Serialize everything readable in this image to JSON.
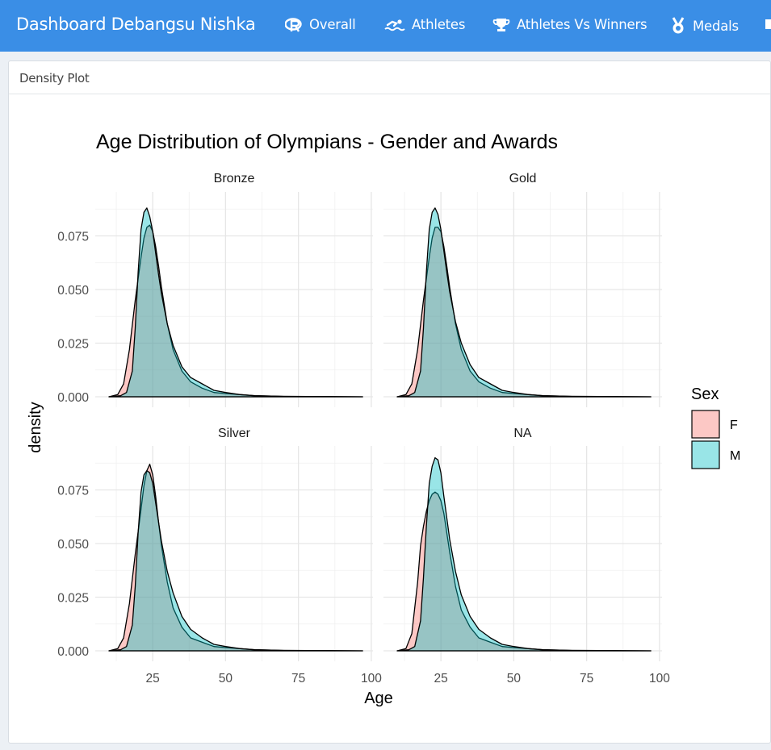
{
  "app": {
    "title": "Dashboard Debangsu Nishka"
  },
  "nav": {
    "items": [
      {
        "label": "Overall",
        "icon": "r-logo-icon"
      },
      {
        "label": "Athletes",
        "icon": "swimmer-icon"
      },
      {
        "label": "Athletes Vs Winners",
        "icon": "trophy-icon"
      },
      {
        "label": "Medals",
        "icon": "medal-icon"
      }
    ]
  },
  "box": {
    "title": "Density Plot"
  },
  "colors": {
    "navbar": "#3a8ee6",
    "female_fill": "#f8766d",
    "male_fill": "#00bfc4"
  },
  "chart_data": {
    "type": "area",
    "title": "Age Distribution of Olympians - Gender and Awards",
    "xlabel": "Age",
    "ylabel": "density",
    "xlim": [
      10,
      97
    ],
    "ylim": [
      0,
      0.09
    ],
    "x_ticks": [
      "25",
      "50",
      "75",
      "100"
    ],
    "y_ticks": [
      "0.000",
      "0.025",
      "0.050",
      "0.075"
    ],
    "legend": {
      "title": "Sex",
      "position": "right",
      "entries": [
        "F",
        "M"
      ]
    },
    "facets": [
      {
        "label": "Bronze",
        "series": [
          {
            "name": "F",
            "x": [
              10,
              13,
              15,
              17,
              19,
              21,
              22,
              23,
              24,
              25,
              26,
              27,
              28,
              30,
              32,
              35,
              38,
              42,
              46,
              50,
              55,
              60,
              70,
              80,
              97
            ],
            "values": [
              0,
              0.001,
              0.006,
              0.022,
              0.045,
              0.065,
              0.074,
              0.079,
              0.08,
              0.077,
              0.07,
              0.061,
              0.051,
              0.034,
              0.022,
              0.012,
              0.007,
              0.004,
              0.002,
              0.0015,
              0.001,
              0.0005,
              0.0002,
              0.0001,
              0
            ]
          },
          {
            "name": "M",
            "x": [
              10,
              14,
              16,
              18,
              19,
              20,
              21,
              22,
              23,
              24,
              25,
              26,
              27,
              28,
              30,
              32,
              35,
              38,
              42,
              46,
              50,
              55,
              60,
              70,
              80,
              97
            ],
            "values": [
              0,
              0.0005,
              0.002,
              0.012,
              0.032,
              0.058,
              0.078,
              0.086,
              0.088,
              0.084,
              0.077,
              0.067,
              0.057,
              0.048,
              0.034,
              0.024,
              0.014,
              0.009,
              0.006,
              0.003,
              0.002,
              0.001,
              0.0005,
              0.0002,
              0.0001,
              0
            ]
          }
        ]
      },
      {
        "label": "Gold",
        "series": [
          {
            "name": "F",
            "x": [
              10,
              13,
              15,
              17,
              19,
              21,
              22,
              23,
              24,
              25,
              26,
              27,
              28,
              30,
              32,
              35,
              38,
              42,
              46,
              50,
              55,
              60,
              70,
              80,
              97
            ],
            "values": [
              0,
              0.001,
              0.006,
              0.022,
              0.045,
              0.065,
              0.074,
              0.079,
              0.079,
              0.077,
              0.07,
              0.061,
              0.051,
              0.034,
              0.022,
              0.012,
              0.007,
              0.004,
              0.002,
              0.0015,
              0.001,
              0.0005,
              0.0002,
              0.0001,
              0
            ]
          },
          {
            "name": "M",
            "x": [
              10,
              14,
              16,
              18,
              19,
              20,
              21,
              22,
              23,
              24,
              25,
              26,
              27,
              28,
              30,
              32,
              35,
              38,
              42,
              46,
              50,
              55,
              60,
              70,
              80,
              97
            ],
            "values": [
              0,
              0.0005,
              0.002,
              0.012,
              0.032,
              0.058,
              0.078,
              0.086,
              0.088,
              0.085,
              0.078,
              0.068,
              0.058,
              0.049,
              0.035,
              0.025,
              0.015,
              0.009,
              0.006,
              0.003,
              0.002,
              0.001,
              0.0005,
              0.0002,
              0.0001,
              0
            ]
          }
        ]
      },
      {
        "label": "Silver",
        "series": [
          {
            "name": "F",
            "x": [
              10,
              13,
              15,
              17,
              19,
              21,
              22,
              23,
              24,
              25,
              26,
              27,
              28,
              30,
              32,
              35,
              38,
              42,
              46,
              50,
              55,
              60,
              70,
              80,
              97
            ],
            "values": [
              0,
              0.001,
              0.006,
              0.022,
              0.045,
              0.066,
              0.077,
              0.084,
              0.087,
              0.082,
              0.072,
              0.06,
              0.049,
              0.032,
              0.02,
              0.011,
              0.006,
              0.004,
              0.002,
              0.0015,
              0.001,
              0.0005,
              0.0002,
              0.0001,
              0
            ]
          },
          {
            "name": "M",
            "x": [
              10,
              14,
              16,
              18,
              19,
              20,
              21,
              22,
              23,
              24,
              25,
              26,
              27,
              28,
              30,
              32,
              35,
              38,
              42,
              46,
              50,
              55,
              60,
              70,
              80,
              97
            ],
            "values": [
              0,
              0.0005,
              0.002,
              0.012,
              0.03,
              0.055,
              0.074,
              0.082,
              0.084,
              0.083,
              0.078,
              0.069,
              0.06,
              0.051,
              0.037,
              0.027,
              0.016,
              0.01,
              0.006,
              0.003,
              0.002,
              0.001,
              0.0005,
              0.0002,
              0.0001,
              0
            ]
          }
        ]
      },
      {
        "label": "NA",
        "series": [
          {
            "name": "F",
            "x": [
              10,
              13,
              15,
              17,
              18,
              19,
              20,
              21,
              22,
              23,
              24,
              25,
              26,
              27,
              28,
              30,
              32,
              35,
              38,
              42,
              46,
              50,
              55,
              60,
              70,
              80,
              97
            ],
            "values": [
              0,
              0.001,
              0.008,
              0.032,
              0.049,
              0.058,
              0.065,
              0.07,
              0.073,
              0.074,
              0.073,
              0.07,
              0.064,
              0.055,
              0.046,
              0.03,
              0.019,
              0.011,
              0.006,
              0.004,
              0.002,
              0.0015,
              0.001,
              0.0005,
              0.0002,
              0.0001,
              0
            ]
          },
          {
            "name": "M",
            "x": [
              10,
              14,
              16,
              18,
              19,
              20,
              21,
              22,
              23,
              24,
              25,
              26,
              27,
              28,
              30,
              32,
              35,
              38,
              42,
              46,
              50,
              55,
              60,
              70,
              80,
              97
            ],
            "values": [
              0,
              0.0005,
              0.002,
              0.014,
              0.034,
              0.058,
              0.078,
              0.086,
              0.09,
              0.089,
              0.083,
              0.072,
              0.062,
              0.052,
              0.037,
              0.026,
              0.016,
              0.01,
              0.006,
              0.003,
              0.002,
              0.001,
              0.0005,
              0.0002,
              0.0001,
              0
            ]
          }
        ]
      }
    ]
  }
}
